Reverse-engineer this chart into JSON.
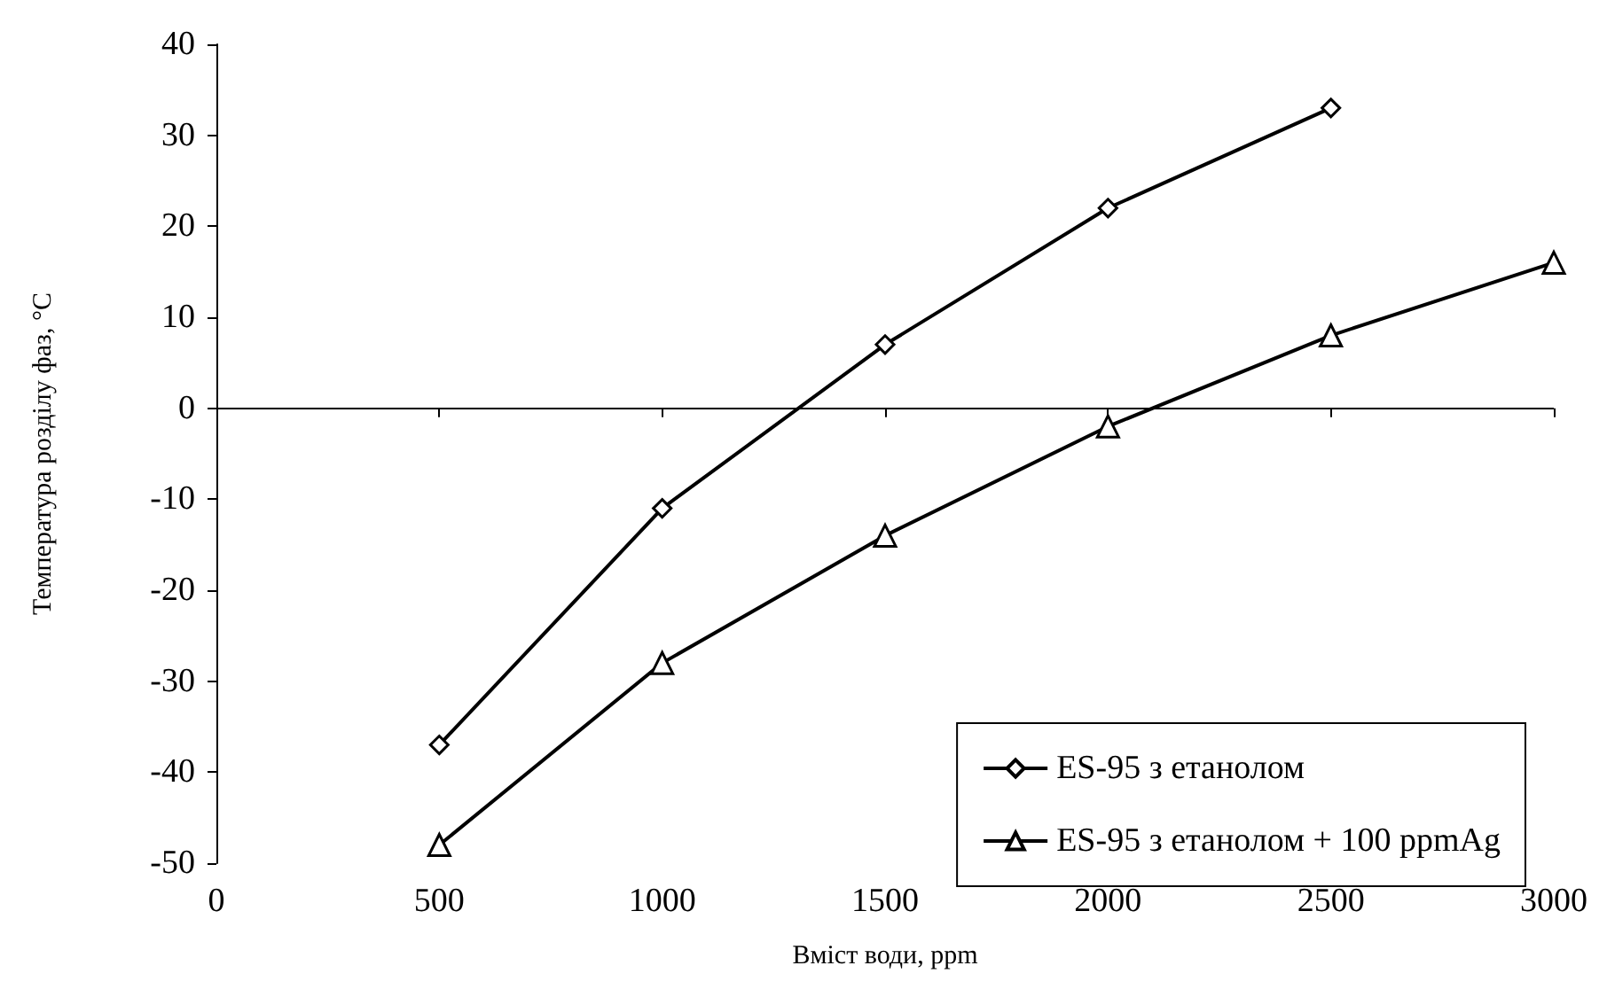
{
  "chart_data": {
    "type": "line",
    "xlabel": "Вміст води, ppm",
    "ylabel": "Температура розділу фаз, °C",
    "xlim": [
      0,
      3000
    ],
    "xticks": [
      0,
      500,
      1000,
      1500,
      2000,
      2500,
      3000
    ],
    "ylim": [
      -50,
      40
    ],
    "yticks": [
      -50,
      -40,
      -30,
      -20,
      -10,
      0,
      10,
      20,
      30,
      40
    ],
    "grid": false,
    "legend": "bottom right",
    "line_style": "solid",
    "ref_lines": [
      {
        "axis": "y",
        "value": 0,
        "color": "#000000"
      }
    ],
    "series": [
      {
        "name": "ES-95 з етанолом",
        "color": "#000000",
        "marker": "diamond",
        "x": [
          500,
          1000,
          1500,
          2000,
          2500
        ],
        "values": [
          -37,
          -11,
          7,
          22,
          33
        ]
      },
      {
        "name": "ES-95 з етанолом + 100 ppmAg",
        "color": "#000000",
        "marker": "triangle",
        "x": [
          500,
          1000,
          1500,
          2000,
          2500,
          3000
        ],
        "values": [
          -48,
          -28,
          -14,
          -2,
          8,
          16
        ]
      }
    ]
  }
}
